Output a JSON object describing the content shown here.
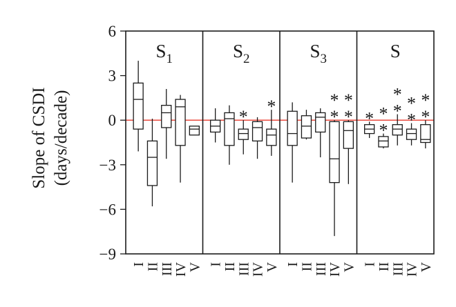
{
  "chart_data": {
    "type": "boxplot",
    "ylabel_line1": "Slope of CSDI",
    "ylabel_line2": "(days/decade)",
    "ylim": [
      -9,
      6
    ],
    "yticks": [
      6,
      3,
      0,
      -3,
      -6,
      -9
    ],
    "ytick_labels": [
      "6",
      "3",
      "0",
      "−3",
      "−6",
      "−9"
    ],
    "reference_line": {
      "value": 0,
      "color": "#e8382b"
    },
    "categories": [
      "I",
      "II",
      "III",
      "IV",
      "V"
    ],
    "panels": [
      {
        "title": "S",
        "subscript": "1",
        "boxes": [
          {
            "category": "I",
            "min": -2.1,
            "q1": -0.6,
            "median": 1.4,
            "q3": 2.5,
            "max": 4.0,
            "sig": ""
          },
          {
            "category": "II",
            "min": -5.8,
            "q1": -4.4,
            "median": -2.5,
            "q3": -1.4,
            "max": 0.1,
            "sig": ""
          },
          {
            "category": "III",
            "min": -2.6,
            "q1": -0.5,
            "median": 0.5,
            "q3": 1.0,
            "max": 2.1,
            "sig": ""
          },
          {
            "category": "IV",
            "min": -4.2,
            "q1": -1.7,
            "median": 0.9,
            "q3": 1.4,
            "max": 1.7,
            "sig": ""
          },
          {
            "category": "V",
            "min": -1.0,
            "q1": -1.0,
            "median": -0.6,
            "q3": -0.4,
            "max": -0.4,
            "sig": ""
          }
        ]
      },
      {
        "title": "S",
        "subscript": "2",
        "boxes": [
          {
            "category": "I",
            "min": -1.5,
            "q1": -0.8,
            "median": -0.4,
            "q3": 0.0,
            "max": 0.8,
            "sig": ""
          },
          {
            "category": "II",
            "min": -3.0,
            "q1": -1.7,
            "median": 0.1,
            "q3": 0.5,
            "max": 1.0,
            "sig": ""
          },
          {
            "category": "III",
            "min": -2.3,
            "q1": -1.3,
            "median": -0.9,
            "q3": -0.6,
            "max": 0.0,
            "sig": "*"
          },
          {
            "category": "IV",
            "min": -2.6,
            "q1": -1.4,
            "median": -0.5,
            "q3": -0.1,
            "max": 0.2,
            "sig": ""
          },
          {
            "category": "V",
            "min": -2.4,
            "q1": -1.7,
            "median": -1.0,
            "q3": -0.6,
            "max": 0.7,
            "sig": "*"
          }
        ]
      },
      {
        "title": "S",
        "subscript": "3",
        "boxes": [
          {
            "category": "I",
            "min": -4.2,
            "q1": -1.7,
            "median": -0.9,
            "q3": 0.6,
            "max": 1.2,
            "sig": ""
          },
          {
            "category": "II",
            "min": -1.3,
            "q1": -1.2,
            "median": -0.4,
            "q3": 0.3,
            "max": 0.7,
            "sig": ""
          },
          {
            "category": "III",
            "min": -2.5,
            "q1": -0.8,
            "median": 0.2,
            "q3": 0.5,
            "max": 0.8,
            "sig": ""
          },
          {
            "category": "IV",
            "min": -7.8,
            "q1": -4.2,
            "median": -2.6,
            "q3": -0.1,
            "max": 0.0,
            "sig": "**"
          },
          {
            "category": "V",
            "min": -4.3,
            "q1": -1.9,
            "median": -0.7,
            "q3": -0.1,
            "max": 0.0,
            "sig": "**"
          }
        ]
      },
      {
        "title": "S",
        "subscript": "",
        "boxes": [
          {
            "category": "I",
            "min": -1.2,
            "q1": -0.9,
            "median": -0.6,
            "q3": -0.3,
            "max": -0.1,
            "sig": "*"
          },
          {
            "category": "II",
            "min": -1.9,
            "q1": -1.8,
            "median": -1.4,
            "q3": -1.1,
            "max": -0.9,
            "sig": "**"
          },
          {
            "category": "III",
            "min": -1.7,
            "q1": -1.0,
            "median": -0.6,
            "q3": -0.3,
            "max": 0.4,
            "sig": "**"
          },
          {
            "category": "IV",
            "min": -1.7,
            "q1": -1.3,
            "median": -0.9,
            "q3": -0.6,
            "max": -0.2,
            "sig": "**"
          },
          {
            "category": "V",
            "min": -1.9,
            "q1": -1.5,
            "median": -1.3,
            "q3": -0.3,
            "max": 0.0,
            "sig": "**"
          }
        ]
      }
    ]
  }
}
